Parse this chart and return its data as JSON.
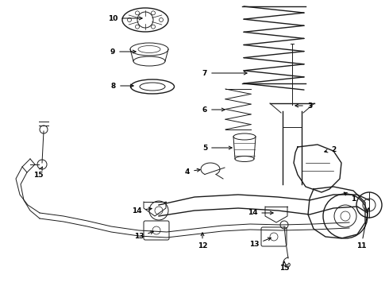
{
  "bg_color": "#ffffff",
  "line_color": "#1a1a1a",
  "label_color": "#000000",
  "arrow_color": "#000000",
  "fig_width": 4.9,
  "fig_height": 3.6,
  "dpi": 100
}
